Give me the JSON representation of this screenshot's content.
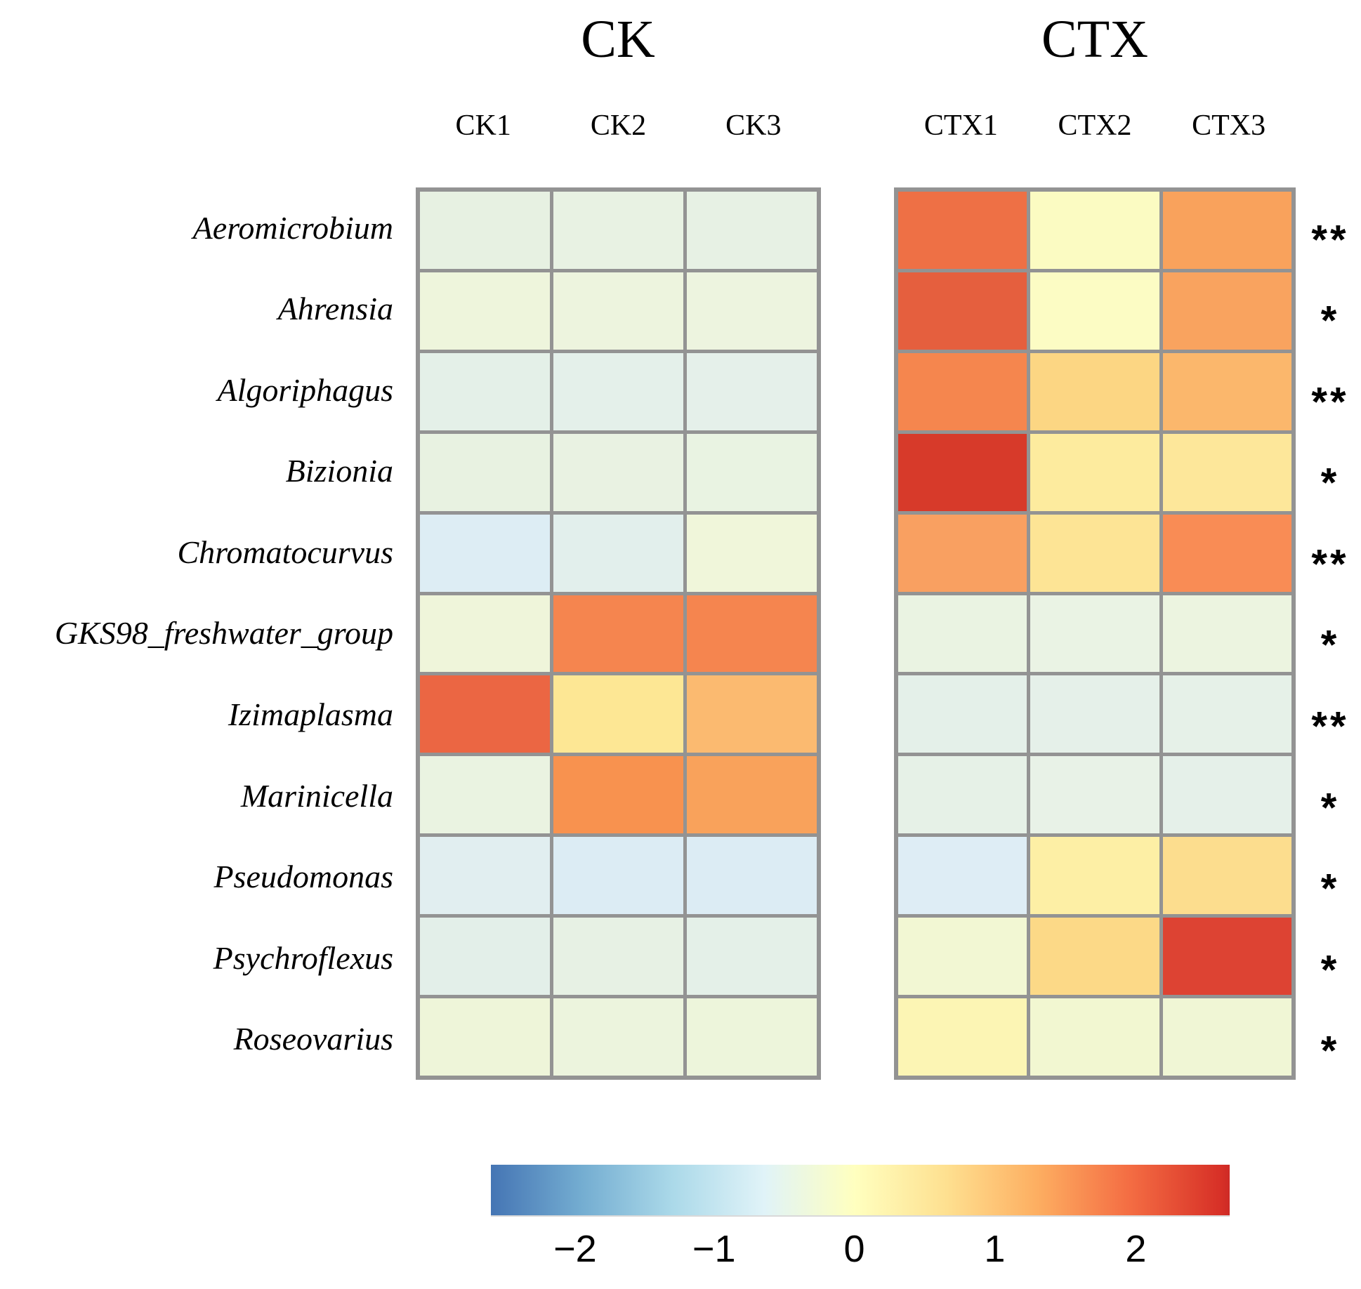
{
  "chart_data": {
    "type": "heatmap",
    "title": "",
    "description": "Row-scaled relative abundance heatmap of bacterial genera in CK vs CTX samples with significance marks",
    "col_groups": [
      {
        "name": "CK",
        "columns": [
          "CK1",
          "CK2",
          "CK3"
        ]
      },
      {
        "name": "CTX",
        "columns": [
          "CTX1",
          "CTX2",
          "CTX3"
        ]
      }
    ],
    "columns": [
      "CK1",
      "CK2",
      "CK3",
      "CTX1",
      "CTX2",
      "CTX3"
    ],
    "rows": [
      {
        "name": "Aeromicrobium",
        "values": [
          -0.45,
          -0.45,
          -0.45,
          1.9,
          0.05,
          1.35
        ],
        "colors": [
          "#e7f1e2",
          "#e8f2e3",
          "#e7f1e4",
          "#ee7045",
          "#fbfbc2",
          "#f9a25c"
        ],
        "significance": "**"
      },
      {
        "name": "Ahrensia",
        "values": [
          -0.3,
          -0.35,
          -0.35,
          2.1,
          0.0,
          1.35
        ],
        "colors": [
          "#eef5dc",
          "#edf4de",
          "#edf4df",
          "#e55f3e",
          "#fcfcc4",
          "#f9a35f"
        ],
        "significance": "*"
      },
      {
        "name": "Algoriphagus",
        "values": [
          -0.55,
          -0.55,
          -0.55,
          1.7,
          0.75,
          1.15
        ],
        "colors": [
          "#e4f0e8",
          "#e4f0ea",
          "#e5f0ea",
          "#f5864e",
          "#fcd683",
          "#fbb76c"
        ],
        "significance": "**"
      },
      {
        "name": "Bizionia",
        "values": [
          -0.45,
          -0.45,
          -0.45,
          2.5,
          0.35,
          0.45
        ],
        "colors": [
          "#e8f2e1",
          "#e9f2e2",
          "#e9f3e2",
          "#d73a2a",
          "#fdeb9e",
          "#fde79a"
        ],
        "significance": "*"
      },
      {
        "name": "Chromatocurvus",
        "values": [
          -0.8,
          -0.6,
          -0.25,
          1.35,
          0.55,
          1.6
        ],
        "colors": [
          "#ddedf4",
          "#e2efec",
          "#f0f6da",
          "#f9a061",
          "#fde495",
          "#f98c55"
        ],
        "significance": "**"
      },
      {
        "name": "GKS98_freshwater_group",
        "values": [
          -0.3,
          1.7,
          1.7,
          -0.5,
          -0.5,
          -0.45
        ],
        "colors": [
          "#eff5da",
          "#f5854f",
          "#f5854f",
          "#eaf3e2",
          "#eaf3e4",
          "#ecf4e0"
        ],
        "significance": "*"
      },
      {
        "name": "Izimaplasma",
        "values": [
          2.05,
          0.5,
          1.1,
          -0.55,
          -0.55,
          -0.5
        ],
        "colors": [
          "#eb6643",
          "#fde794",
          "#fbba70",
          "#e4f0e9",
          "#e5f0e9",
          "#e6f1e8"
        ],
        "significance": "**"
      },
      {
        "name": "Marinicella",
        "values": [
          -0.5,
          1.6,
          1.35,
          -0.5,
          -0.45,
          -0.5
        ],
        "colors": [
          "#eaf3e1",
          "#f8924f",
          "#f9a25b",
          "#e6f1e7",
          "#e8f2e7",
          "#e5f0e9"
        ],
        "significance": "*"
      },
      {
        "name": "Pseudomonas",
        "values": [
          -0.6,
          -0.8,
          -0.8,
          -0.75,
          0.3,
          0.65
        ],
        "colors": [
          "#e1eef0",
          "#dcecf4",
          "#dcecf4",
          "#deedf5",
          "#fdefa5",
          "#fcdd8e"
        ],
        "significance": "*"
      },
      {
        "name": "Psychroflexus",
        "values": [
          -0.55,
          -0.45,
          -0.55,
          -0.15,
          0.75,
          2.45
        ],
        "colors": [
          "#e3efe9",
          "#e7f1e4",
          "#e4f0e8",
          "#f2f7d3",
          "#fcd987",
          "#dd4333"
        ],
        "significance": "*"
      },
      {
        "name": "Roseovarius",
        "values": [
          -0.3,
          -0.35,
          -0.3,
          0.1,
          -0.15,
          -0.2
        ],
        "colors": [
          "#eef5d9",
          "#ecf4dd",
          "#edf5db",
          "#fcf5b4",
          "#f2f7d1",
          "#f0f6d5"
        ],
        "significance": "*"
      }
    ],
    "legend_position": "bottom",
    "grid_line_color": "#939393",
    "colorbar": {
      "orientation": "horizontal",
      "tick_labels": [
        "−2",
        "−1",
        "0",
        "1",
        "2"
      ],
      "tick_values": [
        -2,
        -1,
        0,
        1,
        2
      ],
      "tick_positions_pct": [
        11.4,
        30.2,
        49.2,
        68.2,
        87.3
      ],
      "value_range": [
        -2.6,
        2.7
      ],
      "palette_name": "RdYlBu reversed",
      "gradient_stops": [
        {
          "pct": 0.0,
          "color": "#4575b4"
        },
        {
          "pct": 12.3,
          "color": "#74add1"
        },
        {
          "pct": 24.6,
          "color": "#abd9e9"
        },
        {
          "pct": 37.0,
          "color": "#e0f3f8"
        },
        {
          "pct": 49.3,
          "color": "#ffffbf"
        },
        {
          "pct": 61.7,
          "color": "#fee090"
        },
        {
          "pct": 74.0,
          "color": "#fdae61"
        },
        {
          "pct": 86.4,
          "color": "#f46d43"
        },
        {
          "pct": 98.8,
          "color": "#d73027"
        },
        {
          "pct": 100.0,
          "color": "#cd2a26"
        }
      ]
    }
  }
}
